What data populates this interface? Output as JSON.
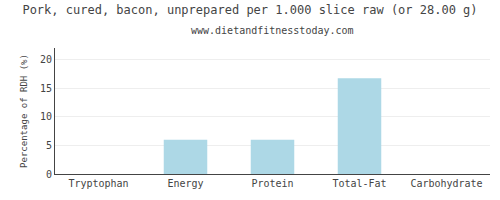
{
  "chart_data": {
    "type": "bar",
    "title": "Pork, cured, bacon, unprepared per 1.000 slice raw (or 28.00 g)",
    "subtitle": "www.dietandfitnesstoday.com",
    "categories": [
      "Tryptophan",
      "Energy",
      "Protein",
      "Total-Fat",
      "Carbohydrate"
    ],
    "values": [
      0.0,
      6.0,
      6.0,
      16.7,
      0.0
    ],
    "color": "#add8e6",
    "ylabel": "Percentage of RDH (%)",
    "ylim": [
      0,
      22
    ],
    "yticks": [
      0,
      5,
      10,
      15,
      20
    ],
    "grid": true
  }
}
